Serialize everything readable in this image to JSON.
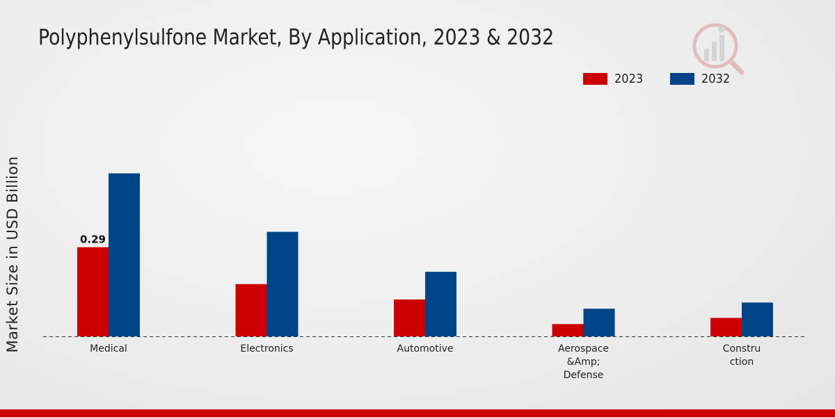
{
  "chart_data": {
    "type": "bar",
    "title": "Polyphenylsulfone Market, By Application, 2023 & 2032",
    "xlabel": "",
    "ylabel": "Market Size in USD Billion",
    "categories": [
      [
        "Medical"
      ],
      [
        "Electronics"
      ],
      [
        "Automotive"
      ],
      [
        "Aerospace",
        "&Amp;",
        "Defense"
      ],
      [
        "Constru",
        "ction"
      ]
    ],
    "series": [
      {
        "name": "2023",
        "color": "#cc0000",
        "values": [
          0.29,
          0.17,
          0.12,
          0.04,
          0.06
        ]
      },
      {
        "name": "2032",
        "color": "#004488",
        "values": [
          0.53,
          0.34,
          0.21,
          0.09,
          0.11
        ]
      }
    ],
    "data_labels": [
      {
        "series": 0,
        "index": 0,
        "text": "0.29"
      }
    ],
    "ylim": [
      0,
      0.8
    ],
    "grid": false,
    "baseline": "dashed",
    "legend_position": "top-right"
  },
  "brand": {
    "accent": "#cc0000"
  }
}
